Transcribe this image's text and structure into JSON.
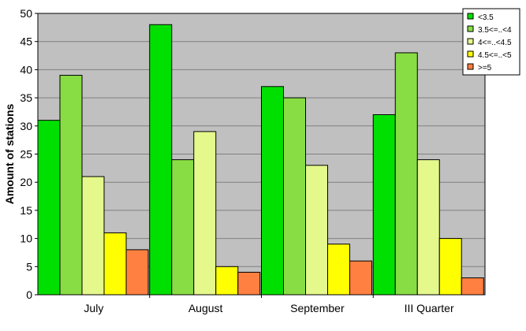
{
  "chart_data": {
    "type": "bar",
    "title": "",
    "xlabel": "",
    "ylabel": "Amount of stations",
    "ylim": [
      0,
      50
    ],
    "yticks": [
      0,
      5,
      10,
      15,
      20,
      25,
      30,
      35,
      40,
      45,
      50
    ],
    "grid": true,
    "legend_position": "top-right",
    "categories": [
      "July",
      "August",
      "September",
      "III Quarter"
    ],
    "series": [
      {
        "name": "<3.5",
        "color": "#00e000",
        "values": [
          31,
          48,
          37,
          32
        ]
      },
      {
        "name": "3.5<=..<4",
        "color": "#88dd44",
        "values": [
          39,
          24,
          35,
          43
        ]
      },
      {
        "name": "4<=..<4.5",
        "color": "#e4f88c",
        "values": [
          21,
          29,
          23,
          24
        ]
      },
      {
        "name": "4.5<=..<5",
        "color": "#ffff00",
        "values": [
          11,
          5,
          9,
          10
        ]
      },
      {
        "name": ">=5",
        "color": "#ff8040",
        "values": [
          8,
          4,
          6,
          3
        ]
      }
    ],
    "plot_background": "#c0c0c0"
  }
}
